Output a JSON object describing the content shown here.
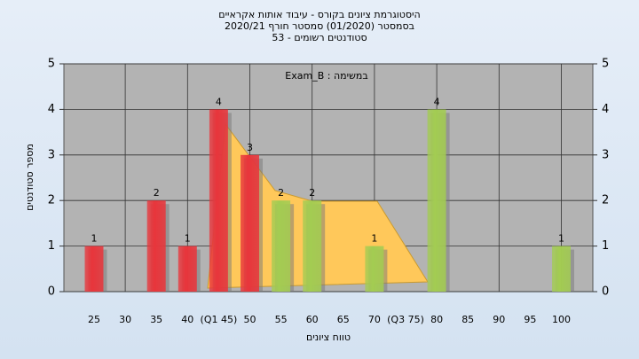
{
  "chart_data": {
    "type": "bar",
    "title": "היסטוגרמת ציונים בקורס - עיבוד אותות אקראיים",
    "subtitle": "בסמסטר  (01/2020)  סמסטר חורף 2020/21",
    "subtitle2": "סטודנטים רשומים - 53",
    "annotation": "במשימה : Exam_B",
    "x_label": "טווח ציונים",
    "y_label": "מספר סטודנטים",
    "categories": [
      "25",
      "30",
      "35",
      "40",
      "(Q1 45)",
      "50",
      "55",
      "60",
      "65",
      "70",
      "(Q3 75)",
      "80",
      "85",
      "90",
      "95",
      "100"
    ],
    "values": [
      1,
      null,
      2,
      1,
      4,
      3,
      2,
      2,
      null,
      1,
      null,
      4,
      null,
      null,
      null,
      1
    ],
    "colors": [
      "#e8353b",
      null,
      "#e8353b",
      "#e8353b",
      "#e8353b",
      "#e8353b",
      "#a3cc52",
      "#a3cc52",
      null,
      "#a3cc52",
      null,
      "#a3cc52",
      null,
      null,
      null,
      "#a3cc52"
    ],
    "ylim": [
      0,
      5
    ],
    "yticks": [
      0,
      1,
      2,
      3,
      4,
      5
    ],
    "y2lim": [
      0,
      5
    ],
    "y2ticks": [
      0,
      1,
      2,
      3,
      4,
      5
    ],
    "grid": true
  }
}
